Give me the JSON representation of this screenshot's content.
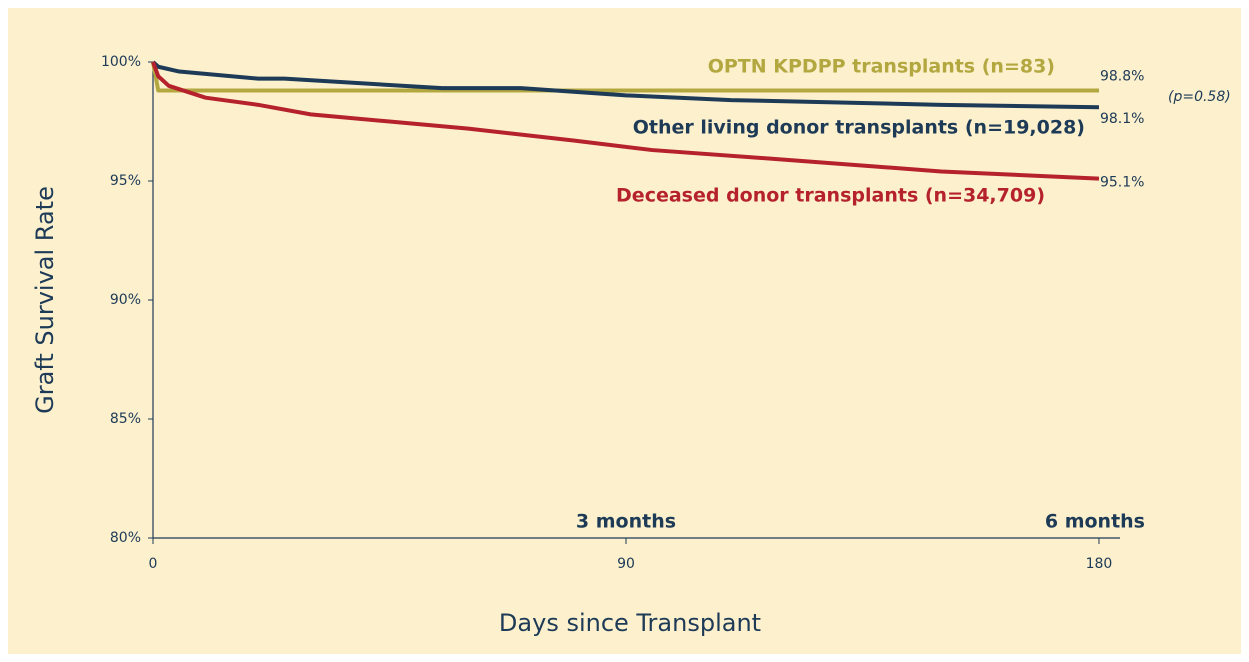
{
  "chart_data": {
    "type": "line",
    "x_label": "Days since Transplant",
    "y_label": "Graft Survival Rate",
    "xlim": [
      0,
      184
    ],
    "ylim": [
      80,
      100
    ],
    "xticks": [
      0,
      90,
      180
    ],
    "yticks": [
      {
        "value": 80,
        "label": "80%"
      },
      {
        "value": 85,
        "label": "85%"
      },
      {
        "value": 90,
        "label": "90%"
      },
      {
        "value": 95,
        "label": "95%"
      },
      {
        "value": 100,
        "label": "100%"
      }
    ],
    "series": [
      {
        "name": "OPTN KPDPP transplants (n=83)",
        "color": "#b3a740",
        "x": [
          0,
          1,
          180
        ],
        "values": [
          100,
          98.8,
          98.8
        ],
        "value_labels": [
          null,
          null,
          "98.8%"
        ]
      },
      {
        "name": "Other living donor transplants (n=19,028)",
        "color": "#1d3a57",
        "x": [
          0,
          1,
          5,
          20,
          25,
          55,
          70,
          90,
          110,
          150,
          180
        ],
        "values": [
          100,
          99.8,
          99.6,
          99.3,
          99.3,
          98.9,
          98.9,
          98.6,
          98.4,
          98.2,
          98.1
        ],
        "value_labels": [
          null,
          null,
          null,
          null,
          null,
          null,
          null,
          null,
          null,
          null,
          "98.1%"
        ]
      },
      {
        "name": "Deceased donor transplants (n=34,709)",
        "color": "#b5222c",
        "x": [
          0,
          1,
          3,
          10,
          20,
          30,
          45,
          60,
          80,
          95,
          120,
          150,
          180
        ],
        "values": [
          100,
          99.4,
          99.0,
          98.5,
          98.2,
          97.8,
          97.5,
          97.2,
          96.7,
          96.3,
          95.9,
          95.4,
          95.1
        ],
        "value_labels": [
          null,
          null,
          null,
          null,
          null,
          null,
          null,
          null,
          null,
          null,
          null,
          null,
          "95.1%"
        ]
      }
    ],
    "annotations": [
      "3 months",
      "6 months",
      "(p=0.58)"
    ]
  }
}
